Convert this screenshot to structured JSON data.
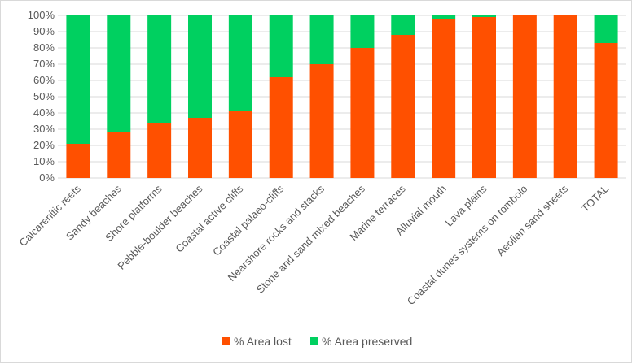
{
  "colors": {
    "lost": "#ff5000",
    "preserved": "#00d060",
    "gridline": "#d9d9d9",
    "axis_text": "#595959",
    "border": "#d9d9d9"
  },
  "chart_data": {
    "type": "bar",
    "stacked": true,
    "percent_stacked": true,
    "categories": [
      "Calcarenitic reefs",
      "Sandy beaches",
      "Shore platforms",
      "Pebble-boulder beaches",
      "Coastal active cliffs",
      "Coastal palaeo-cliffs",
      "Nearshore rocks and stacks",
      "Stone and sand mixed beaches",
      "Marine terraces",
      "Alluvial mouth",
      "Lava plains",
      "Coastal dunes systems on tombolo",
      "Aeolian sand sheets",
      "TOTAL"
    ],
    "series": [
      {
        "name": "% Area lost",
        "color": "#ff5000",
        "values": [
          21,
          28,
          34,
          37,
          41,
          62,
          70,
          80,
          88,
          98,
          99,
          100,
          100,
          83
        ]
      },
      {
        "name": "% Area preserved",
        "color": "#00d060",
        "values": [
          79,
          72,
          66,
          63,
          59,
          38,
          30,
          20,
          12,
          2,
          1,
          0,
          0,
          17
        ]
      }
    ],
    "y_ticks": [
      "0%",
      "10%",
      "20%",
      "30%",
      "40%",
      "50%",
      "60%",
      "70%",
      "80%",
      "90%",
      "100%"
    ],
    "ylim": [
      0,
      100
    ],
    "title": "",
    "xlabel": "",
    "ylabel": "",
    "grid": "horizontal",
    "legend_position": "bottom"
  }
}
